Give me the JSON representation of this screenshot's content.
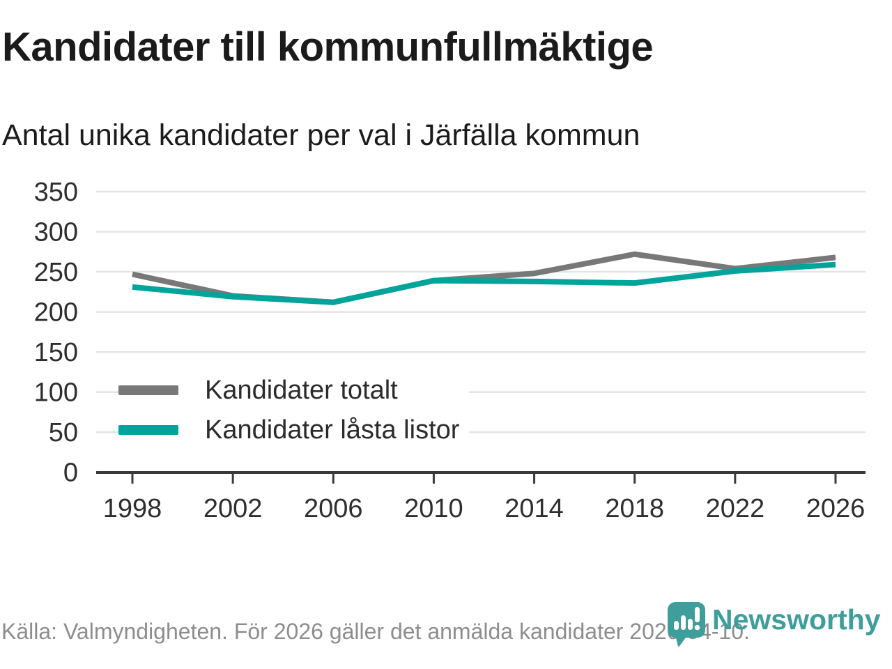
{
  "header": {
    "title": "Kandidater till kommunfullmäktige",
    "subtitle": "Antal unika kandidater per val i Järfälla kommun"
  },
  "chart_data": {
    "type": "line",
    "x": [
      1998,
      2002,
      2006,
      2010,
      2014,
      2018,
      2022,
      2026
    ],
    "series": [
      {
        "name": "Kandidater totalt",
        "color": "#787878",
        "values": [
          247,
          220,
          212,
          239,
          248,
          272,
          254,
          268
        ]
      },
      {
        "name": "Kandidater låsta listor",
        "color": "#00a49a",
        "values": [
          231,
          219,
          212,
          239,
          238,
          236,
          251,
          259
        ]
      }
    ],
    "ylim": [
      0,
      350
    ],
    "yticks": [
      0,
      50,
      100,
      150,
      200,
      250,
      300,
      350
    ],
    "grid": true,
    "legend_position": "inside-left-bottom",
    "xlabel": "",
    "ylabel": ""
  },
  "footer": {
    "source": "Källa: Valmyndigheten. För 2026 gäller det anmälda kandidater 2026-04-10.",
    "brand": "Newsworthy"
  },
  "colors": {
    "accent_teal": "#00a49a",
    "series_gray": "#787878",
    "brand_teal": "#3d9e9b",
    "gridline": "#e4e4e4",
    "axis": "#3a3a3a",
    "text_dark": "#1b1b1b",
    "text_muted": "#8d8d8d"
  }
}
